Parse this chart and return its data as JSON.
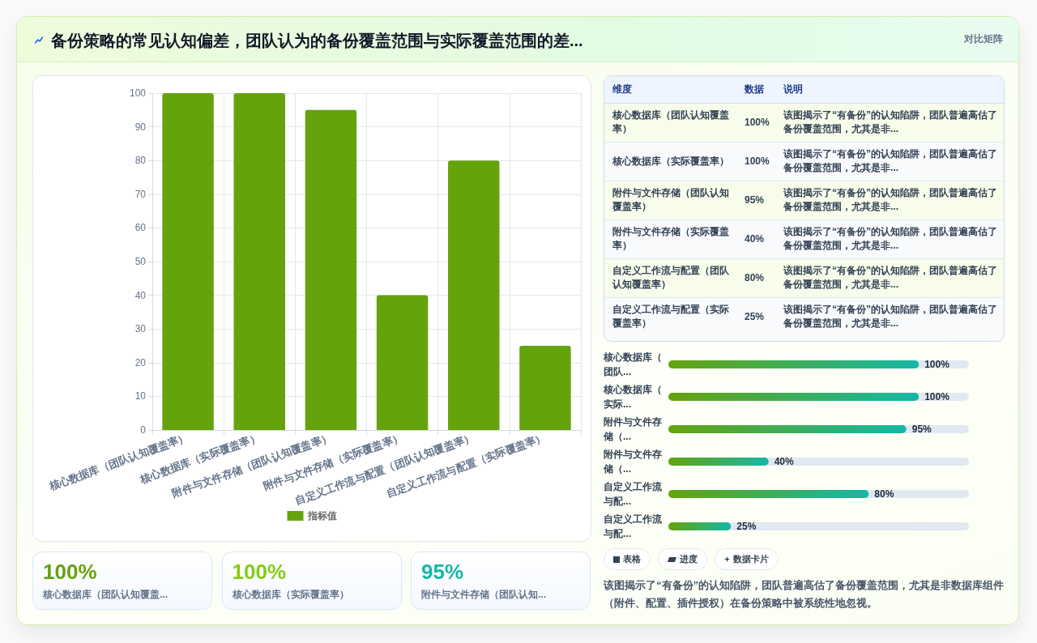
{
  "chart_data": [
    {
      "type": "bar",
      "title": "备份策略的常见认知偏差，团队认为的备份覆盖范围与实际覆盖范围的差...",
      "annotations": [
        "对比矩阵"
      ],
      "categories": [
        "核心数据库（团队认知覆盖率）",
        "核心数据库（实际覆盖率）",
        "附件与文件存储（团队认知覆盖率）",
        "附件与文件存储（实际覆盖率）",
        "自定义工作流与配置（团队认知覆盖率）",
        "自定义工作流与配置（实际覆盖率）"
      ],
      "series": [
        {
          "name": "指标值",
          "color": "#65a30d",
          "values": [
            100,
            100,
            95,
            40,
            80,
            25
          ]
        }
      ],
      "ylim": [
        0,
        100
      ],
      "yticks": [
        0,
        10,
        20,
        30,
        40,
        50,
        60,
        70,
        80,
        90,
        100
      ],
      "grid": true,
      "legend": "bottom"
    },
    {
      "type": "other",
      "categories": [
        "核心数据库（团队认知覆盖率）",
        "核心数据库（实际覆盖率）",
        "附件与文件存储（团队认知覆盖率）",
        "附件与文件存储（实际覆盖率）",
        "自定义工作流与配置（团队认知覆盖率）",
        "自定义工作流与配置（实际覆盖率）"
      ],
      "value_labels": [
        "100%",
        "100%",
        "95%",
        "40%",
        "80%",
        "25%"
      ],
      "annotations": [
        "维度",
        "数据",
        "说明",
        "该图揭示了“有备份”的认知陷阱，团队普遍高估了备份覆盖范围，尤其是非...",
        "该图揭示了“有备份”的认知陷阱，团队普遍高估了备份覆盖范围，尤其是非...",
        "该图揭示了“有备份”的认知陷阱，团队普遍高估了备份覆盖范围，尤其是非...",
        "该图揭示了“有备份”的认知陷阱，团队普遍高估了备份覆盖范围，尤其是非...",
        "该图揭示了“有备份”的认知陷阱，团队普遍高估了备份覆盖范围，尤其是非...",
        "该图揭示了“有备份”的认知陷阱，团队普遍高估了备份覆盖范围，尤其是非..."
      ]
    },
    {
      "type": "bar",
      "orientation": "horizontal",
      "categories": [
        "核心数据库（团队...",
        "核心数据库（实际...",
        "附件与文件存储（...",
        "附件与文件存储（...",
        "自定义工作流与配...",
        "自定义工作流与配..."
      ],
      "values": [
        100,
        100,
        95,
        40,
        80,
        25
      ],
      "value_labels": [
        "100%",
        "100%",
        "95%",
        "40%",
        "80%",
        "25%"
      ],
      "color": "#65a30d",
      "xlim": [
        0,
        120
      ],
      "tick_labels": "y"
    },
    {
      "type": "other",
      "categories": [
        "核心数据库（团队认知覆盖...",
        "核心数据库（实际覆盖率）",
        "附件与文件存储（团队认知..."
      ],
      "value_labels": [
        "100%",
        "100%",
        "95%"
      ]
    },
    {
      "type": "other",
      "annotations": [
        "表格",
        "进度",
        "数据卡片",
        "该图揭示了“有备份”的认知陷阱，团队普遍高估了备份覆盖范围，尤其是非数据库组件（附件、配置、插件授权）在备份策略中被系统性地忽视。"
      ]
    }
  ]
}
